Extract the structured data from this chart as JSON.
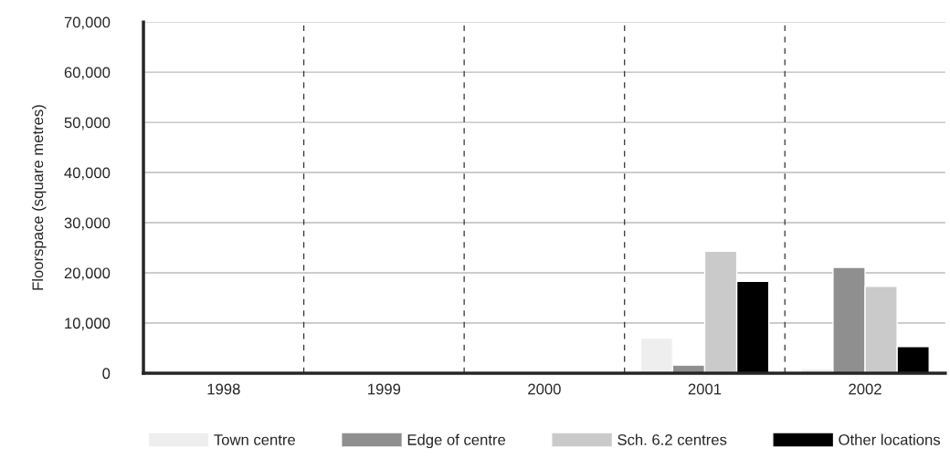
{
  "chart_data": {
    "type": "bar",
    "ylabel": "Floorspace (square metres)",
    "categories": [
      "1998",
      "1999",
      "2000",
      "2001",
      "2002"
    ],
    "series": [
      {
        "name": "Town centre",
        "color": "#eeeeee",
        "values": [
          null,
          null,
          null,
          7000,
          900
        ]
      },
      {
        "name": "Edge of centre",
        "color": "#8f8f8f",
        "values": [
          null,
          null,
          null,
          1600,
          21100
        ]
      },
      {
        "name": "Sch. 6.2 centres",
        "color": "#cacaca",
        "values": [
          null,
          null,
          null,
          24300,
          17300
        ]
      },
      {
        "name": "Other locations",
        "color": "#000000",
        "values": [
          null,
          null,
          null,
          18300,
          5300
        ]
      }
    ],
    "ylim": [
      0,
      70000
    ],
    "yticks": [
      {
        "value": 0,
        "label": "0"
      },
      {
        "value": 10000,
        "label": "10,000"
      },
      {
        "value": 20000,
        "label": "20,000"
      },
      {
        "value": 30000,
        "label": "30,000"
      },
      {
        "value": 40000,
        "label": "40,000"
      },
      {
        "value": 50000,
        "label": "50,000"
      },
      {
        "value": 60000,
        "label": "60,000"
      },
      {
        "value": 70000,
        "label": "70,000"
      }
    ],
    "grid": "y",
    "legend": "bottom"
  }
}
